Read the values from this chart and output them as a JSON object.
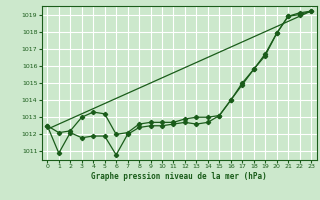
{
  "bg_color": "#cce8cc",
  "grid_color": "#ffffff",
  "line_color": "#1a5c1a",
  "title": "Graphe pression niveau de la mer (hPa)",
  "ylim": [
    1010.5,
    1019.5
  ],
  "xlim": [
    -0.5,
    23.5
  ],
  "yticks": [
    1011,
    1012,
    1013,
    1014,
    1015,
    1016,
    1017,
    1018,
    1019
  ],
  "xticks": [
    0,
    1,
    2,
    3,
    4,
    5,
    6,
    7,
    8,
    9,
    10,
    11,
    12,
    13,
    14,
    15,
    16,
    17,
    18,
    19,
    20,
    21,
    22,
    23
  ],
  "line1_smooth": {
    "x": [
      0,
      23
    ],
    "y": [
      1012.3,
      1019.2
    ]
  },
  "line2": {
    "x": [
      0,
      1,
      2,
      3,
      4,
      5,
      6,
      7,
      8,
      9,
      10,
      11,
      12,
      13,
      14,
      15,
      16,
      17,
      18,
      19,
      20,
      21,
      22,
      23
    ],
    "y": [
      1012.5,
      1010.9,
      1012.1,
      1011.8,
      1011.9,
      1011.9,
      1010.8,
      1012.0,
      1012.4,
      1012.5,
      1012.5,
      1012.6,
      1012.7,
      1012.6,
      1012.7,
      1013.1,
      1014.0,
      1014.9,
      1015.8,
      1016.6,
      1017.9,
      1018.9,
      1019.1,
      1019.2
    ]
  },
  "line3": {
    "x": [
      0,
      1,
      2,
      3,
      4,
      5,
      6,
      7,
      8,
      9,
      10,
      11,
      12,
      13,
      14,
      15,
      16,
      17,
      18,
      19,
      20,
      21,
      22,
      23
    ],
    "y": [
      1012.5,
      1012.1,
      1012.2,
      1013.0,
      1013.3,
      1013.2,
      1012.0,
      1012.1,
      1012.6,
      1012.7,
      1012.7,
      1012.7,
      1012.9,
      1013.0,
      1013.0,
      1013.1,
      1014.0,
      1015.0,
      1015.8,
      1016.7,
      1017.9,
      1018.9,
      1019.0,
      1019.2
    ]
  }
}
